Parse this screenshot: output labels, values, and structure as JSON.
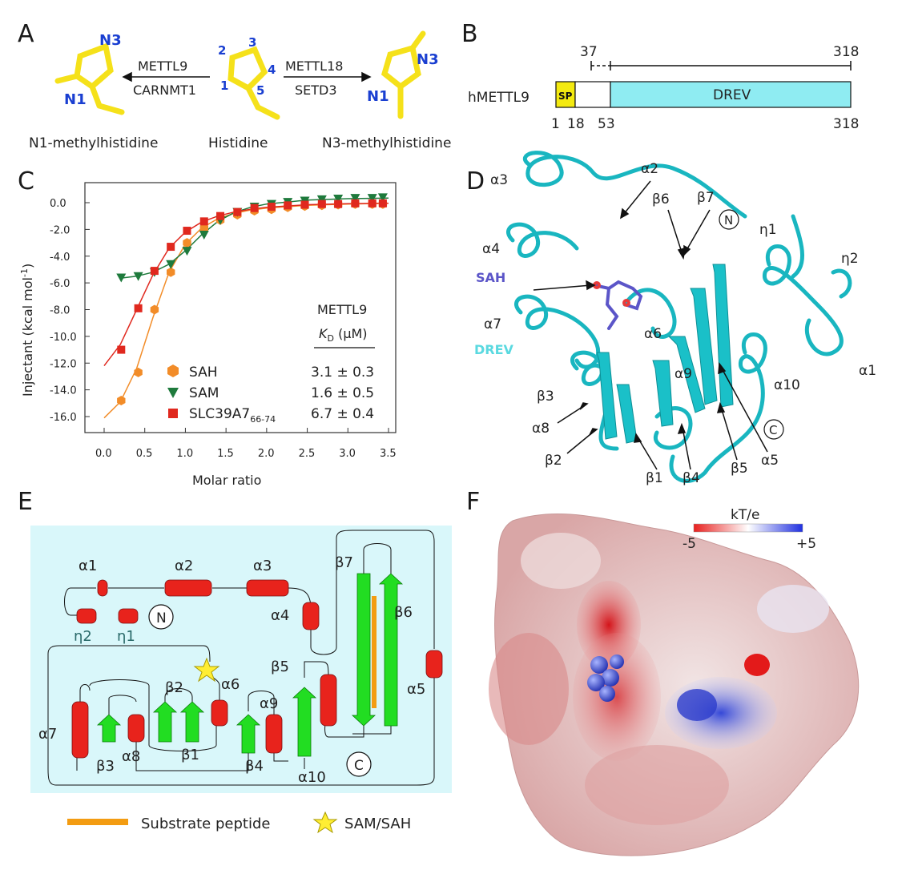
{
  "panels": {
    "a": "A",
    "b": "B",
    "c": "C",
    "d": "D",
    "e": "E",
    "f": "F"
  },
  "panelA": {
    "left_label": "N1-methylhistidine",
    "center_label": "Histidine",
    "right_label": "N3-methylhistidine",
    "enzyme_left_top": "METTL9",
    "enzyme_left_bottom": "CARNMT1",
    "enzyme_right_top": "METTL18",
    "enzyme_right_bottom": "SETD3",
    "n1": "N1",
    "n3": "N3",
    "ring_numbers": [
      "1",
      "2",
      "3",
      "4",
      "5"
    ]
  },
  "panelB": {
    "protein": "hMETTL9",
    "sp": "SP",
    "domain": "DREV",
    "top_ticks": [
      "37",
      "318"
    ],
    "bottom_ticks": [
      "1",
      "18",
      "53",
      "318"
    ]
  },
  "panelC": {
    "xlabel": "Molar ratio",
    "ylabel": "Injectant (kcal mol⁻¹)",
    "ylabel_main": "Injectant (kcal mol",
    "ylabel_sup": "-1",
    "ylabel_end": ")",
    "table_header1": "METTL9",
    "table_header2_k": "K",
    "table_header2_sub": "D",
    "table_header2_unit": " (μM)",
    "legend": [
      {
        "name": "SAH",
        "kd": "3.1 ± 0.3",
        "color": "#f28c28"
      },
      {
        "name": "SAM",
        "kd": "1.6 ± 0.5",
        "color": "#1e7a3c"
      },
      {
        "name": "SLC39A7",
        "sub": "66-74",
        "kd": "6.7 ± 0.4",
        "color": "#e0281e"
      }
    ]
  },
  "chart_data": {
    "type": "scatter",
    "xlabel": "Molar ratio",
    "ylabel": "Injectant (kcal mol-1)",
    "xlim": [
      0,
      3.5
    ],
    "ylim": [
      -16,
      0
    ],
    "xticks": [
      "0.0",
      "0.5",
      "1.0",
      "1.5",
      "2.0",
      "2.5",
      "3.0",
      "3.5"
    ],
    "yticks": [
      "0.0",
      "-2.0",
      "-4.0",
      "-6.0",
      "-8.0",
      "-10.0",
      "-12.0",
      "-14.0",
      "-16.0"
    ],
    "series": [
      {
        "name": "SAH",
        "color": "#f28c28",
        "marker": "hexagon",
        "x": [
          0.21,
          0.42,
          0.62,
          0.82,
          1.02,
          1.23,
          1.43,
          1.64,
          1.85,
          2.06,
          2.26,
          2.47,
          2.68,
          2.88,
          3.09,
          3.3,
          3.43
        ],
        "y": [
          -14.8,
          -12.7,
          -8.0,
          -5.2,
          -3.0,
          -1.9,
          -1.3,
          -0.9,
          -0.6,
          -0.5,
          -0.35,
          -0.25,
          -0.2,
          -0.15,
          -0.1,
          -0.1,
          -0.1
        ],
        "fit_x": [
          0.0,
          0.2,
          0.4,
          0.6,
          0.8,
          1.0,
          1.2,
          1.4,
          1.6,
          1.8,
          2.0,
          2.5,
          3.0,
          3.5
        ],
        "fit_y": [
          -16.1,
          -14.9,
          -12.4,
          -8.6,
          -5.2,
          -3.1,
          -1.9,
          -1.2,
          -0.8,
          -0.55,
          -0.4,
          -0.2,
          -0.1,
          -0.05
        ]
      },
      {
        "name": "SAM",
        "color": "#1e7a3c",
        "marker": "triangle-down",
        "x": [
          0.21,
          0.42,
          0.62,
          0.82,
          1.02,
          1.23,
          1.43,
          1.64,
          1.85,
          2.06,
          2.26,
          2.47,
          2.68,
          2.88,
          3.09,
          3.3,
          3.43
        ],
        "y": [
          -5.6,
          -5.5,
          -5.2,
          -4.6,
          -3.6,
          -2.4,
          -1.3,
          -0.7,
          -0.3,
          -0.1,
          0.05,
          0.15,
          0.25,
          0.3,
          0.35,
          0.35,
          0.4
        ],
        "fit_x": [
          0.2,
          0.4,
          0.6,
          0.8,
          1.0,
          1.2,
          1.4,
          1.6,
          1.8,
          2.0,
          2.5,
          3.0,
          3.5
        ],
        "fit_y": [
          -5.65,
          -5.5,
          -5.2,
          -4.6,
          -3.6,
          -2.4,
          -1.4,
          -0.75,
          -0.35,
          -0.1,
          0.2,
          0.3,
          0.35
        ]
      },
      {
        "name": "SLC39A7 66-74",
        "color": "#e0281e",
        "marker": "square",
        "x": [
          0.21,
          0.42,
          0.62,
          0.82,
          1.02,
          1.23,
          1.43,
          1.64,
          1.85,
          2.06,
          2.26,
          2.47,
          2.68,
          2.88,
          3.09,
          3.3,
          3.43
        ],
        "y": [
          -11.0,
          -7.9,
          -5.1,
          -3.3,
          -2.1,
          -1.4,
          -1.0,
          -0.7,
          -0.4,
          -0.3,
          -0.2,
          -0.15,
          -0.1,
          -0.1,
          -0.05,
          -0.05,
          -0.05
        ],
        "fit_x": [
          0.0,
          0.2,
          0.4,
          0.6,
          0.8,
          1.0,
          1.2,
          1.4,
          1.6,
          1.8,
          2.0,
          2.5,
          3.0,
          3.5
        ],
        "fit_y": [
          -12.2,
          -10.6,
          -8.0,
          -5.4,
          -3.4,
          -2.2,
          -1.45,
          -1.0,
          -0.7,
          -0.5,
          -0.35,
          -0.15,
          -0.08,
          -0.04
        ]
      }
    ]
  },
  "panelD": {
    "labels": [
      "α2",
      "α3",
      "β6",
      "β7",
      "N",
      "η1",
      "η2",
      "α4",
      "SAH",
      "α7",
      "α6",
      "DREV",
      "α9",
      "α10",
      "α1",
      "β3",
      "α8",
      "β2",
      "β1",
      "β4",
      "β5",
      "α5",
      "C"
    ]
  },
  "panelE": {
    "helix_labels": [
      "α1",
      "α2",
      "α3",
      "α4",
      "α5",
      "α6",
      "α7",
      "α8",
      "α9",
      "α10"
    ],
    "eta_labels": [
      "η2",
      "η1"
    ],
    "strand_labels": [
      "β1",
      "β2",
      "β3",
      "β4",
      "β5",
      "β6",
      "β7"
    ],
    "n": "N",
    "c": "C",
    "legend_substrate": "Substrate peptide",
    "legend_sam": "SAM/SAH",
    "colors": {
      "helix": "#e8231c",
      "strand": "#22dd22",
      "bg": "#d9f7fa",
      "substrate": "#f39c12",
      "star": "#ffee33"
    }
  },
  "panelF": {
    "scale_title": "kT/e",
    "scale_min": "-5",
    "scale_max": "+5"
  }
}
